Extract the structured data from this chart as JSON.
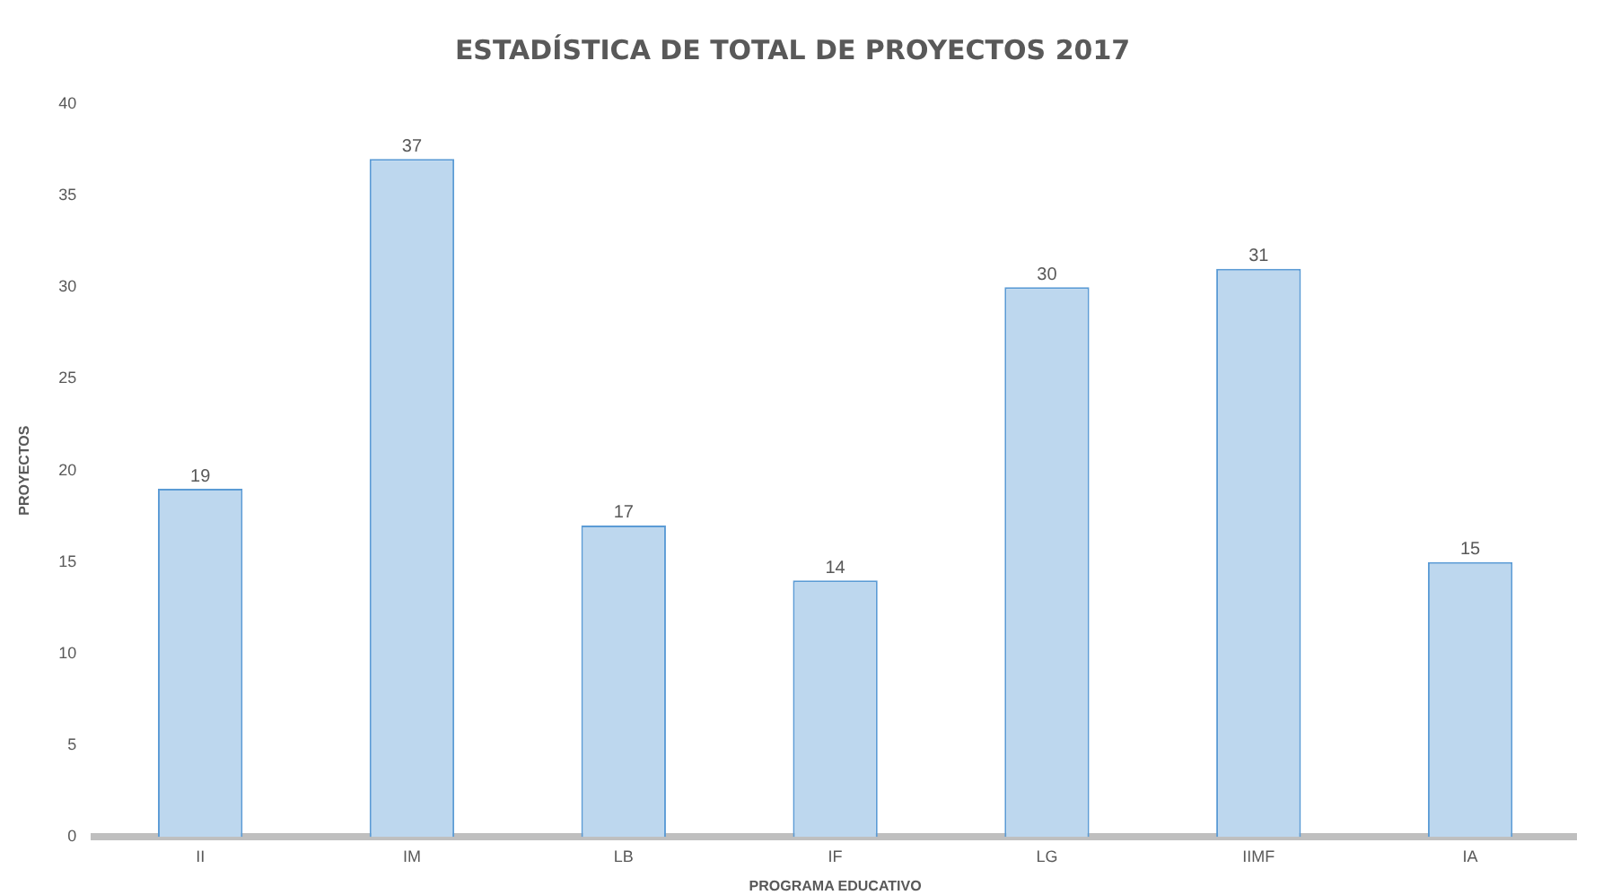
{
  "chart_data": {
    "type": "bar",
    "title": "ESTADÍSTICA DE TOTAL DE PROYECTOS 2017",
    "xlabel": "PROGRAMA EDUCATIVO",
    "ylabel": "PROYECTOS",
    "categories": [
      "II",
      "IM",
      "LB",
      "IF",
      "LG",
      "IIMF",
      "IA"
    ],
    "values": [
      19,
      37,
      17,
      14,
      30,
      31,
      15
    ],
    "color": "#bdd7ee",
    "ylim": [
      0,
      40
    ],
    "yticks": [
      0,
      5,
      10,
      15,
      20,
      25,
      30,
      35,
      40
    ],
    "grid": false,
    "data_labels": true
  }
}
